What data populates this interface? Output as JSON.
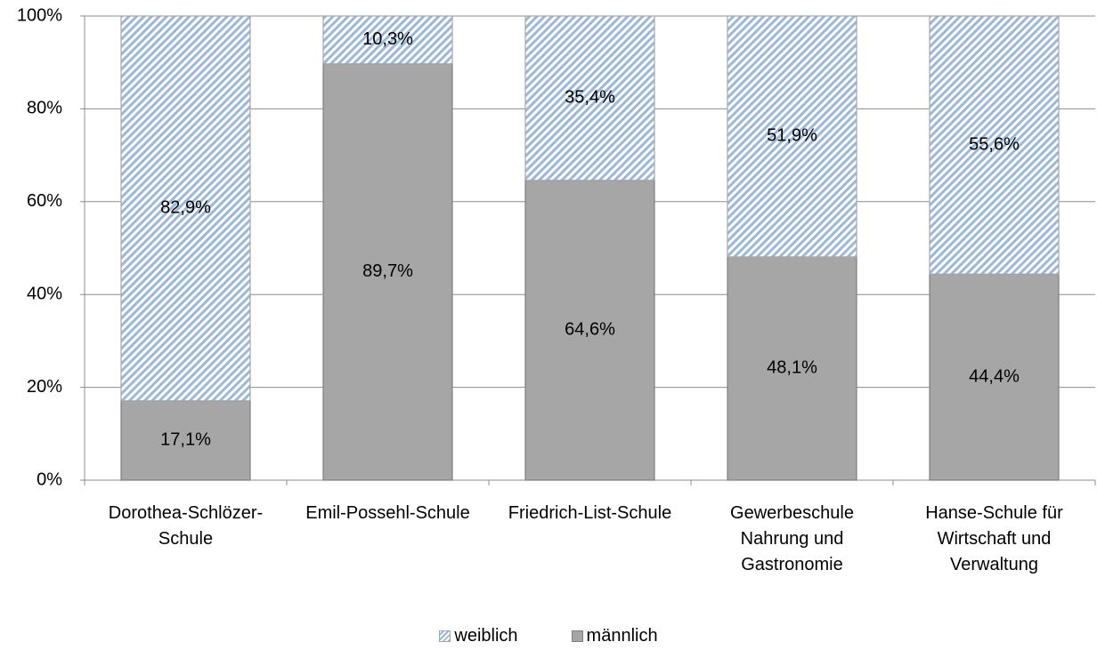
{
  "chart_data": {
    "type": "stacked-bar",
    "categories": [
      "Dorothea-Schlözer-Schule",
      "Emil-Possehl-Schule",
      "Friedrich-List-Schule",
      "Gewerbeschule Nahrung und Gastronomie",
      "Hanse-Schule für Wirtschaft und Verwaltung"
    ],
    "series": [
      {
        "name": "männlich",
        "color": "#a6a6a6",
        "values": [
          17.1,
          89.7,
          64.6,
          48.1,
          44.4
        ],
        "value_labels": [
          "17,1%",
          "89,7%",
          "64,6%",
          "48,1%",
          "44,4%"
        ]
      },
      {
        "name": "weiblich",
        "color": "#9bb7d9",
        "pattern": "hatch",
        "values": [
          82.9,
          10.3,
          35.4,
          51.9,
          55.6
        ],
        "value_labels": [
          "82,9%",
          "10,3%",
          "35,4%",
          "51,9%",
          "55,6%"
        ]
      }
    ],
    "ylim": [
      0,
      100
    ],
    "yticks": [
      {
        "value": 0,
        "label": "0%"
      },
      {
        "value": 20,
        "label": "20%"
      },
      {
        "value": 40,
        "label": "40%"
      },
      {
        "value": 60,
        "label": "60%"
      },
      {
        "value": 80,
        "label": "80%"
      },
      {
        "value": 100,
        "label": "100%"
      }
    ],
    "grid": true,
    "legend": "bottom"
  }
}
